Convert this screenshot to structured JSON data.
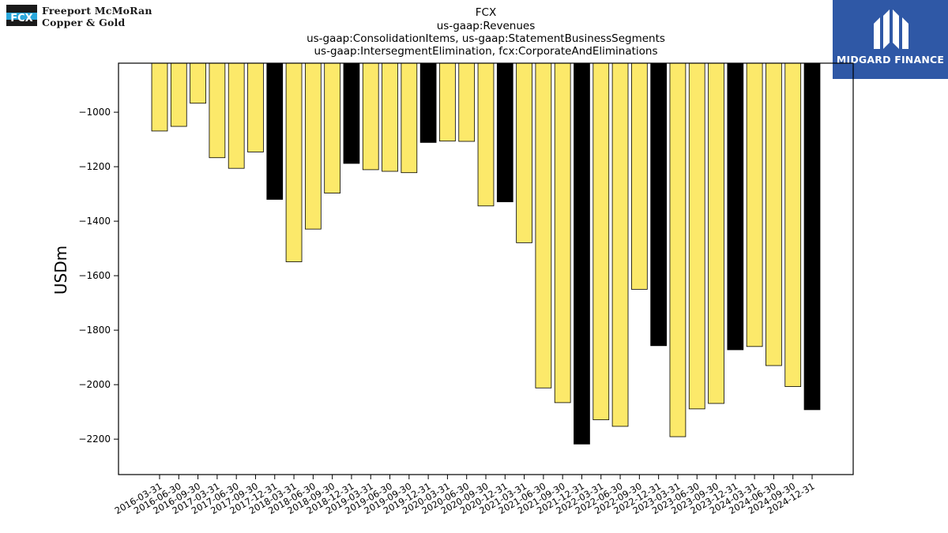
{
  "logos": {
    "left": {
      "line1": "Freeport McMoRan",
      "line2": "Copper & Gold",
      "mark": "FCX"
    },
    "right": {
      "brand": "MIDGARD FINANCE",
      "icon": "midgard-m-icon"
    }
  },
  "chart_data": {
    "type": "bar",
    "title": [
      "FCX",
      "us-gaap:Revenues",
      "us-gaap:ConsolidationItems, us-gaap:StatementBusinessSegments",
      "us-gaap:IntersegmentElimination, fcx:CorporateAndEliminations"
    ],
    "xlabel": "",
    "ylabel": "USDm",
    "ylim": [
      -2330,
      -820
    ],
    "yticks": [
      -1000,
      -1200,
      -1400,
      -1600,
      -1800,
      -2000,
      -2200
    ],
    "grid": false,
    "colors": {
      "quarter": "#fce96a",
      "year_end": "#000000",
      "edge": "#000000"
    },
    "categories": [
      "2016-03-31",
      "2016-06-30",
      "2016-09-30",
      "2017-03-31",
      "2017-06-30",
      "2017-09-30",
      "2017-12-31",
      "2018-03-31",
      "2018-06-30",
      "2018-09-30",
      "2018-12-31",
      "2019-03-31",
      "2019-06-30",
      "2019-09-30",
      "2019-12-31",
      "2020-03-31",
      "2020-06-30",
      "2020-09-30",
      "2020-12-31",
      "2021-03-31",
      "2021-06-30",
      "2021-09-30",
      "2021-12-31",
      "2022-03-31",
      "2022-06-30",
      "2022-09-30",
      "2022-12-31",
      "2023-03-31",
      "2023-06-30",
      "2023-09-30",
      "2023-12-31",
      "2024-03-31",
      "2024-06-30",
      "2024-09-30",
      "2024-12-31"
    ],
    "values": [
      -1069,
      -1052,
      -967,
      -1167,
      -1206,
      -1146,
      -1320,
      -1549,
      -1429,
      -1297,
      -1188,
      -1211,
      -1217,
      -1222,
      -1111,
      -1106,
      -1107,
      -1344,
      -1329,
      -1479,
      -2012,
      -2066,
      -2218,
      -2129,
      -2153,
      -1650,
      -1857,
      -2191,
      -2089,
      -2069,
      -1872,
      -1860,
      -1930,
      -2007,
      -2092
    ],
    "year_end": [
      false,
      false,
      false,
      false,
      false,
      false,
      true,
      false,
      false,
      false,
      true,
      false,
      false,
      false,
      true,
      false,
      false,
      false,
      true,
      false,
      false,
      false,
      true,
      false,
      false,
      false,
      true,
      false,
      false,
      false,
      true,
      false,
      false,
      false,
      true
    ]
  }
}
